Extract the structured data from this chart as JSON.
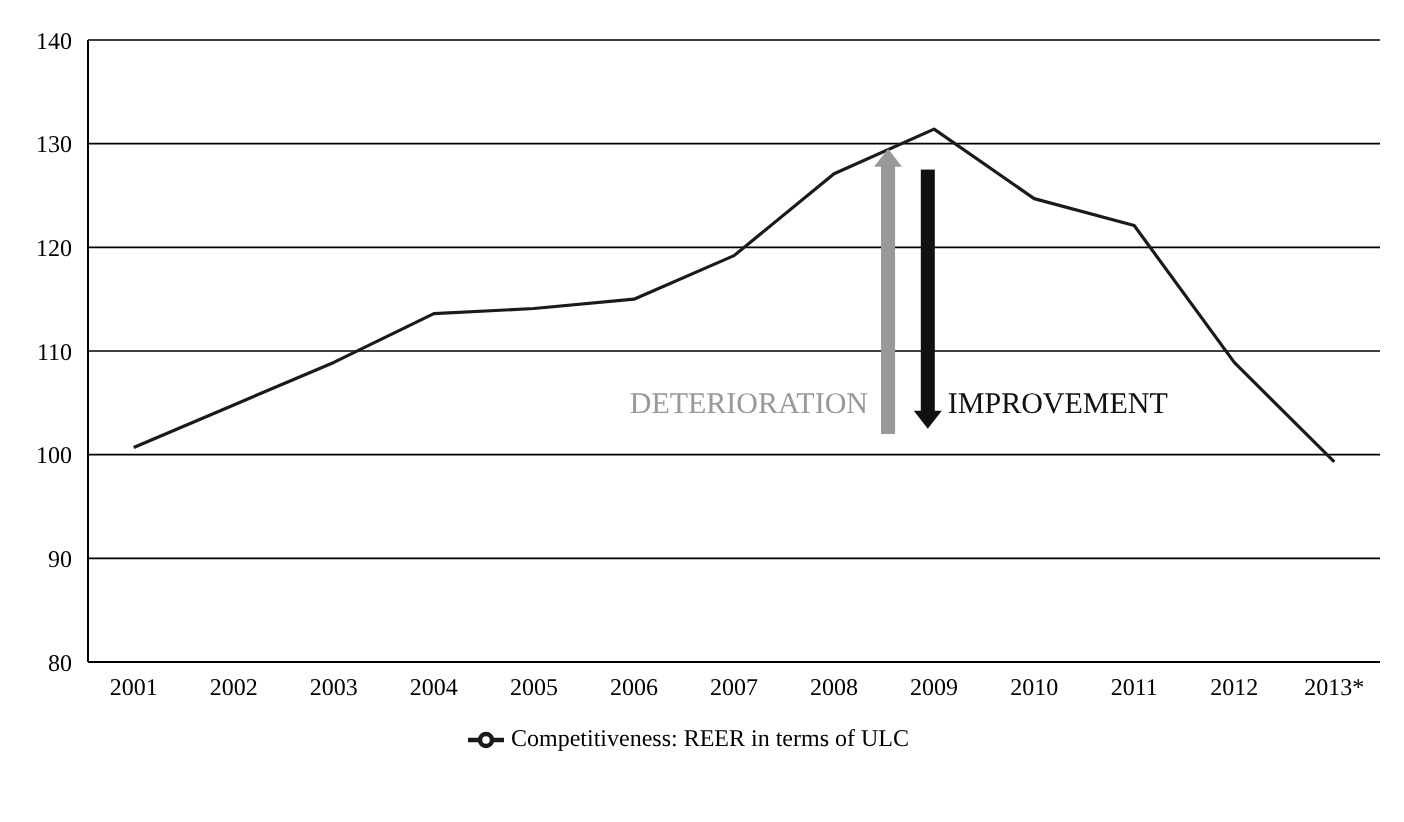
{
  "chart_data": {
    "type": "line",
    "categories": [
      "2001",
      "2002",
      "2003",
      "2004",
      "2005",
      "2006",
      "2007",
      "2008",
      "2009",
      "2010",
      "2011",
      "2012",
      "2013*"
    ],
    "series": [
      {
        "name": "Competitiveness: REER in terms of ULC",
        "color": "#1a1a1a",
        "values": [
          100.7,
          104.8,
          108.9,
          113.6,
          114.1,
          115.0,
          119.2,
          127.1,
          131.4,
          124.7,
          122.1,
          108.9,
          99.3
        ]
      }
    ],
    "ylim": [
      80,
      140
    ],
    "yticks": [
      80,
      90,
      100,
      110,
      120,
      130,
      140
    ],
    "grid": "y",
    "legend": "bottom",
    "marker": "none",
    "line_style": "solid",
    "annotations": [
      "DETERIORATION",
      "IMPROVEMENT"
    ]
  }
}
